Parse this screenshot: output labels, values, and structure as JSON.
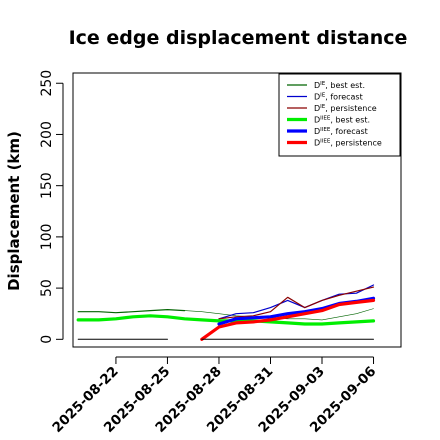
{
  "chart_data": {
    "type": "line",
    "title": "Ice edge displacement distance",
    "ylabel": "Displacement (km)",
    "xlabel": "",
    "x_tick_labels": [
      "2025-08-22",
      "2025-08-25",
      "2025-08-28",
      "2025-08-31",
      "2025-09-03",
      "2025-09-06"
    ],
    "x_tick_values": [
      2,
      5,
      8,
      11,
      14,
      17
    ],
    "x_tick_colors": [
      "#000000",
      "#000000",
      "#228B22",
      "#000000",
      "#000000",
      "#000000"
    ],
    "xlim": [
      -0.5,
      18.6
    ],
    "ylim": [
      -7.5,
      260
    ],
    "y_ticks": [
      0,
      50,
      100,
      150,
      200,
      250
    ],
    "grid": false,
    "legend_position": "top-right",
    "series": [
      {
        "name": "D^IE, best est.",
        "color": "#006400",
        "width": 1.2,
        "x": [
          -0.2,
          1,
          2,
          3,
          4,
          5,
          6,
          7,
          8,
          9,
          10,
          11,
          12,
          13,
          14,
          15,
          16,
          17
        ],
        "y": [
          27,
          27,
          26,
          27,
          28,
          29,
          28,
          27,
          25,
          23,
          22,
          21,
          20,
          20,
          19,
          22,
          25,
          30
        ],
        "dash_from_index": 6
      },
      {
        "name": "D^IE, forecast",
        "color": "#0000CD",
        "width": 1.2,
        "x": [
          8,
          9,
          10,
          11,
          12,
          13,
          14,
          15,
          16,
          17
        ],
        "y": [
          20,
          25,
          26,
          31,
          38,
          31,
          38,
          44,
          45,
          53
        ]
      },
      {
        "name": "D^IE, persistence",
        "color": "#8B0000",
        "width": 1.2,
        "x": [
          8,
          9,
          10,
          11,
          12,
          13,
          14,
          15,
          16,
          17
        ],
        "y": [
          20,
          22,
          23,
          27,
          41,
          31,
          38,
          43,
          47,
          51
        ]
      },
      {
        "name": "D^IIEE, best est.",
        "color": "#00EE00",
        "width": 3.2,
        "x": [
          -0.2,
          1,
          2,
          3,
          4,
          5,
          6,
          7,
          8,
          9,
          10,
          11,
          12,
          13,
          14,
          15,
          16,
          17
        ],
        "y": [
          19,
          19,
          20,
          22,
          23,
          22,
          20,
          19,
          18,
          18,
          18,
          17,
          16,
          15,
          15,
          16,
          17,
          18
        ]
      },
      {
        "name": "D^IIEE, forecast",
        "color": "#0000FF",
        "width": 3.2,
        "x": [
          8,
          9,
          10,
          11,
          12,
          13,
          14,
          15,
          16,
          17
        ],
        "y": [
          15,
          20,
          21,
          22,
          25,
          27,
          30,
          35,
          37,
          40
        ]
      },
      {
        "name": "D^IIEE, persistence",
        "color": "#FF0000",
        "width": 3.2,
        "x": [
          7,
          8,
          9,
          10,
          11,
          12,
          13,
          14,
          15,
          16,
          17
        ],
        "y": [
          0,
          12,
          16,
          17,
          19,
          22,
          25,
          28,
          34,
          36,
          38
        ]
      },
      {
        "name": "",
        "color": "#000000",
        "width": 1.0,
        "x": [
          -0.2,
          5
        ],
        "y": [
          0,
          0
        ]
      },
      {
        "name": "",
        "color": "#000000",
        "width": 1.0,
        "x": [
          7,
          17
        ],
        "y": [
          0,
          0
        ]
      }
    ]
  }
}
